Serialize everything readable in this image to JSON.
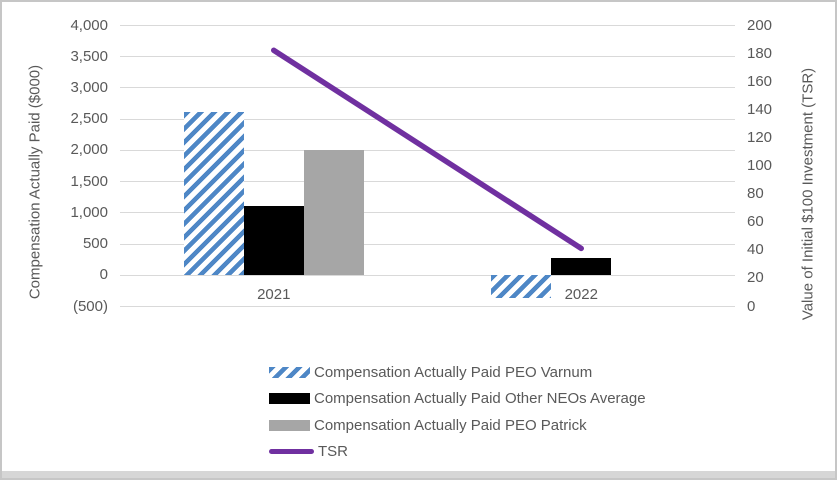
{
  "chart_data": {
    "type": "bar",
    "subtype": "grouped-bar-with-line-overlay",
    "categories": [
      "2021",
      "2022"
    ],
    "series": [
      {
        "name": "Compensation Actually Paid PEO Varnum",
        "type": "bar",
        "style": "hatched",
        "color": "#4e87c6",
        "axis": "left",
        "values": [
          2600,
          -380
        ]
      },
      {
        "name": "Compensation Actually Paid Other NEOs Average",
        "type": "bar",
        "style": "solid",
        "color": "#000000",
        "axis": "left",
        "values": [
          1100,
          270
        ]
      },
      {
        "name": "Compensation Actually Paid PEO Patrick",
        "type": "bar",
        "style": "solid",
        "color": "#a6a6a6",
        "axis": "left",
        "values": [
          2000,
          null
        ]
      },
      {
        "name": "TSR",
        "type": "line",
        "style": "line",
        "color": "#7030a0",
        "axis": "right",
        "values": [
          182,
          41
        ]
      }
    ],
    "left_axis": {
      "title": "Compensation Actually Paid ($000)",
      "min": -500,
      "max": 4000,
      "ticks": [
        "4,000",
        "3,500",
        "3,000",
        "2,500",
        "2,000",
        "1,500",
        "1,000",
        "500",
        "0",
        "(500)"
      ]
    },
    "right_axis": {
      "title": "Value of Initial $100 Investment (TSR)",
      "min": 0,
      "max": 200,
      "ticks": [
        "200",
        "180",
        "160",
        "140",
        "120",
        "100",
        "80",
        "60",
        "40",
        "20",
        "0"
      ]
    },
    "grid": true,
    "legend_position": "bottom",
    "colors": {
      "gridline": "#d9d9d9",
      "text": "#595959",
      "background": "#ffffff",
      "border": "#c6c6c6"
    }
  }
}
